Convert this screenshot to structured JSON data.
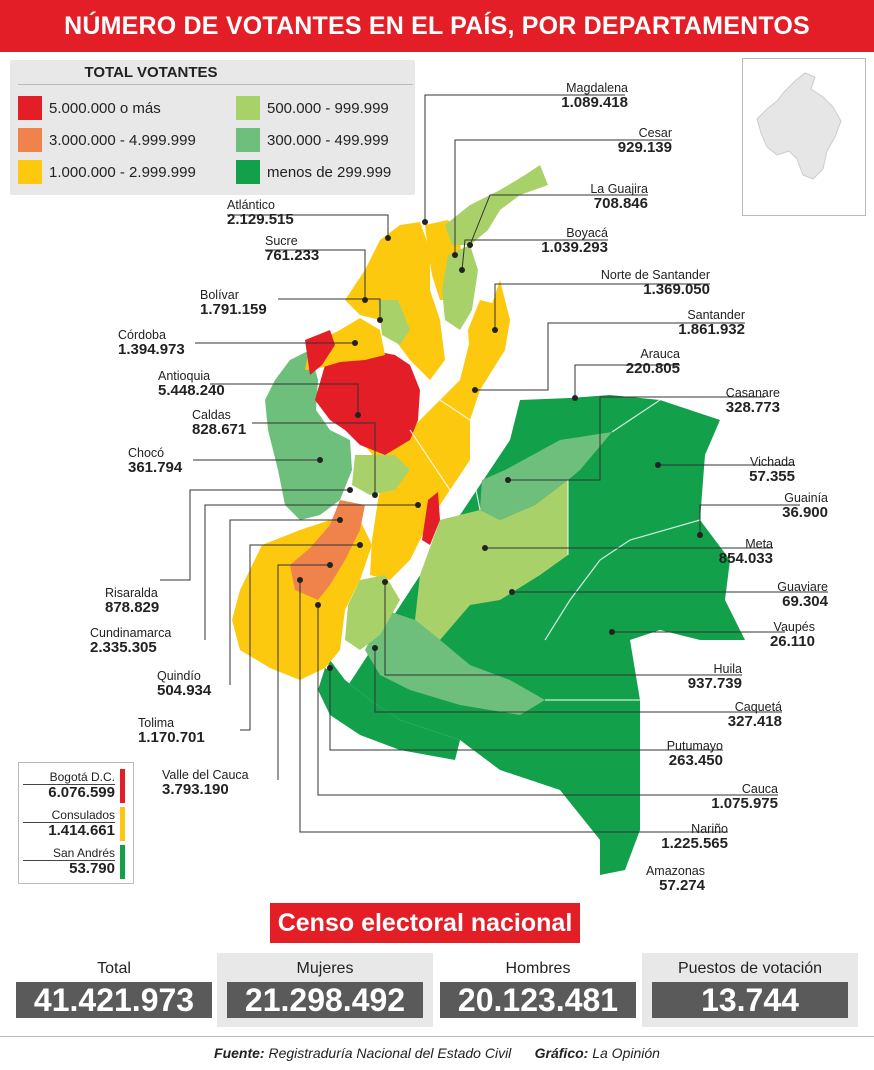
{
  "title": "NÚMERO DE VOTANTES EN EL PAÍS, POR DEPARTAMENTOS",
  "legend": {
    "title": "TOTAL VOTANTES",
    "items": [
      {
        "label": "5.000.000 o más",
        "color": "#e41e26"
      },
      {
        "label": "3.000.000 - 4.999.999",
        "color": "#f0834c"
      },
      {
        "label": "1.000.000 - 2.999.999",
        "color": "#fdc90f"
      },
      {
        "label": "500.000 - 999.999",
        "color": "#a8d16a"
      },
      {
        "label": "300.000 - 499.999",
        "color": "#6ebf7b"
      },
      {
        "label": "menos de 299.999",
        "color": "#12a04a"
      }
    ]
  },
  "departments": [
    {
      "name": "Magdalena",
      "value": "1.089.418",
      "color": "#fdc90f"
    },
    {
      "name": "Cesar",
      "value": "929.139",
      "color": "#a8d16a"
    },
    {
      "name": "La Guajira",
      "value": "708.846",
      "color": "#a8d16a"
    },
    {
      "name": "Boyacá",
      "value": "1.039.293",
      "color": "#fdc90f"
    },
    {
      "name": "Norte de Santander",
      "value": "1.369.050",
      "color": "#fdc90f"
    },
    {
      "name": "Santander",
      "value": "1.861.932",
      "color": "#fdc90f"
    },
    {
      "name": "Arauca",
      "value": "220.805",
      "color": "#12a04a"
    },
    {
      "name": "Casanare",
      "value": "328.773",
      "color": "#6ebf7b"
    },
    {
      "name": "Vichada",
      "value": "57.355",
      "color": "#12a04a"
    },
    {
      "name": "Guainía",
      "value": "36.900",
      "color": "#12a04a"
    },
    {
      "name": "Meta",
      "value": "854.033",
      "color": "#a8d16a"
    },
    {
      "name": "Guaviare",
      "value": "69.304",
      "color": "#12a04a"
    },
    {
      "name": "Vaupés",
      "value": "26.110",
      "color": "#12a04a"
    },
    {
      "name": "Huila",
      "value": "937.739",
      "color": "#a8d16a"
    },
    {
      "name": "Caquetá",
      "value": "327.418",
      "color": "#6ebf7b"
    },
    {
      "name": "Putumayo",
      "value": "263.450",
      "color": "#12a04a"
    },
    {
      "name": "Cauca",
      "value": "1.075.975",
      "color": "#fdc90f"
    },
    {
      "name": "Nariño",
      "value": "1.225.565",
      "color": "#fdc90f"
    },
    {
      "name": "Amazonas",
      "value": "57.274",
      "color": "#12a04a"
    },
    {
      "name": "Atlántico",
      "value": "2.129.515",
      "color": "#fdc90f"
    },
    {
      "name": "Sucre",
      "value": "761.233",
      "color": "#a8d16a"
    },
    {
      "name": "Bolívar",
      "value": "1.791.159",
      "color": "#fdc90f"
    },
    {
      "name": "Córdoba",
      "value": "1.394.973",
      "color": "#fdc90f"
    },
    {
      "name": "Antioquia",
      "value": "5.448.240",
      "color": "#e41e26"
    },
    {
      "name": "Caldas",
      "value": "828.671",
      "color": "#a8d16a"
    },
    {
      "name": "Chocó",
      "value": "361.794",
      "color": "#6ebf7b"
    },
    {
      "name": "Risaralda",
      "value": "878.829",
      "color": "#a8d16a"
    },
    {
      "name": "Cundinamarca",
      "value": "2.335.305",
      "color": "#fdc90f"
    },
    {
      "name": "Quindío",
      "value": "504.934",
      "color": "#a8d16a"
    },
    {
      "name": "Tolima",
      "value": "1.170.701",
      "color": "#fdc90f"
    },
    {
      "name": "Valle del Cauca",
      "value": "3.793.190",
      "color": "#f0834c"
    }
  ],
  "special": [
    {
      "name": "Bogotá D.C.",
      "value": "6.076.599",
      "color": "#e41e26"
    },
    {
      "name": "Consulados",
      "value": "1.414.661",
      "color": "#fdc90f"
    },
    {
      "name": "San Andrés",
      "value": "53.790",
      "color": "#12a04a"
    }
  ],
  "censo": {
    "title": "Censo electoral nacional",
    "stats": [
      {
        "label": "Total",
        "value": "41.421.973"
      },
      {
        "label": "Mujeres",
        "value": "21.298.492"
      },
      {
        "label": "Hombres",
        "value": "20.123.481"
      },
      {
        "label": "Puestos de votación",
        "value": "13.744"
      }
    ]
  },
  "footer": {
    "source_label": "Fuente:",
    "source": "Registraduría Nacional del Estado Civil",
    "graphic_label": "Gráfico:",
    "graphic": "La Opinión"
  }
}
